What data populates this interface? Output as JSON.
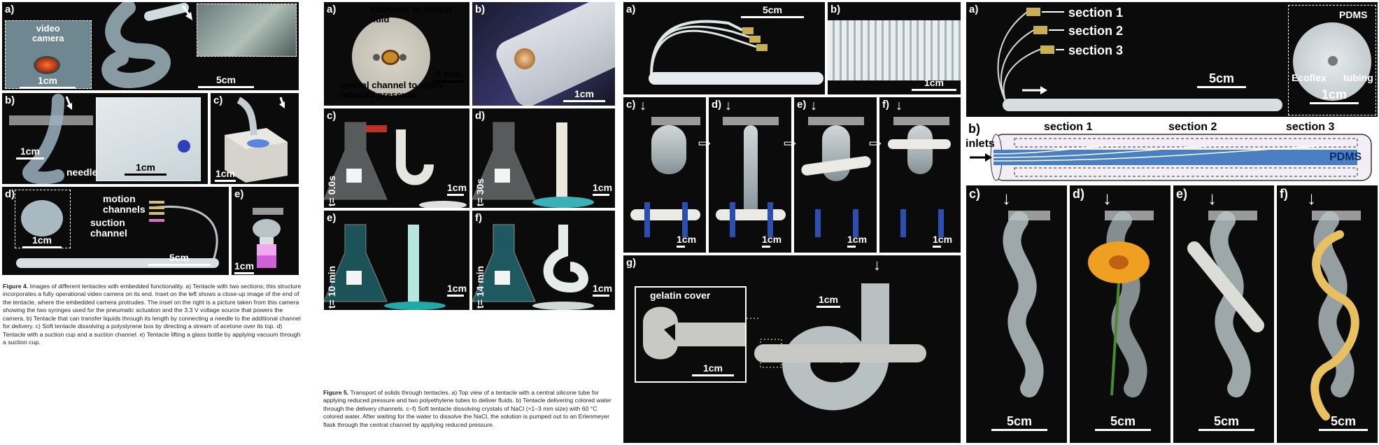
{
  "figure4": {
    "panels": {
      "a": {
        "label": "a)",
        "inset_text": "video\ncamera",
        "scale_inset": "1cm",
        "scale_main": "5cm"
      },
      "b": {
        "label": "b)",
        "scale_main": "1cm",
        "needle": "needle",
        "scale_inset": "1cm"
      },
      "c": {
        "label": "c)",
        "scale": "1cm"
      },
      "d": {
        "label": "d)",
        "motion": "motion\nchannels",
        "suction": "suction\nchannel",
        "scale_inset": "1cm",
        "scale_main": "5cm"
      },
      "e": {
        "label": "e)",
        "scale": "1cm"
      }
    },
    "caption": {
      "title": "Figure 4.",
      "text": " Images of different tentacles with embedded functionality. a) Tentacle with two sections; this structure incorporates a fully operational video camera on its end. Inset on the left shows a close-up image of the end of the tentacle, where the embedded camera protrudes. The inset on the right is a picture taken from this camera showing the two syringes used for the pneumatic actuation and the 3.3 V voltage source that powers the camera. b) Tentacle that can transfer liquids through its length by connecting a needle to the additional channel for delivery. c) Soft tentacle dissolving a polystyrene box by directing a stream of acetone over its top. d) Tentacle with a suction cup and a suction channel. e) Tentacle lifting a glass bottle by applying vacuum through a suction cup."
    }
  },
  "figure5": {
    "panels": {
      "a": {
        "label": "a)",
        "top": "channels to deliver\nfluid",
        "bottom": "central channel to apply\nreduced pressure",
        "scale": "5 mm"
      },
      "b": {
        "label": "b)",
        "scale": "1cm"
      },
      "c": {
        "label": "c)",
        "time": "t= 0.0s",
        "scale": "1cm"
      },
      "d": {
        "label": "d)",
        "time": "t= 30s",
        "scale": "1cm"
      },
      "e": {
        "label": "e)",
        "time": "t= 10 min",
        "scale": "1cm"
      },
      "f": {
        "label": "f)",
        "time": "t= 14 min",
        "scale": "1cm"
      }
    },
    "caption": {
      "title": "Figure 5.",
      "text": " Transport of solids through tentacles. a) Top view of a tentacle with a central silicone tube for applying reduced pressure and two polyethylene tubes to deliver fluids. b) Tentacle delivering colored water through the delivery channels. c–f) Soft tentacle dissolving crystals of NaCl (≈1–3 mm size) with 60 °C colored water. After waiting for the water to dissolve the NaCl, the solution is pumped out to an Erlenmeyer flask through the central channel by applying reduced pressure."
    }
  },
  "figure6": {
    "panels": {
      "a": {
        "label": "a)",
        "scale": "5cm"
      },
      "b": {
        "label": "b)",
        "scale": "1cm"
      },
      "c": {
        "label": "c)",
        "scale": "1cm"
      },
      "d": {
        "label": "d)",
        "scale": "1cm"
      },
      "e": {
        "label": "e)",
        "scale": "1cm"
      },
      "f": {
        "label": "f)",
        "scale": "1cm"
      },
      "g": {
        "label": "g)",
        "inset_text": "gelatin cover",
        "scale_inset": "1cm",
        "scale_main": "1cm"
      }
    }
  },
  "figure7": {
    "panels": {
      "a": {
        "label": "a)",
        "section1": "section 1",
        "section2": "section 2",
        "section3": "section 3",
        "pdms": "PDMS",
        "ecoflex": "Ecoflex",
        "tubing": "tubing",
        "scale_main": "5cm",
        "scale_inset": "1cm"
      },
      "b": {
        "label": "b)",
        "inlets": "inlets",
        "section1": "section 1",
        "section2": "section 2",
        "section3": "section 3",
        "pdms": "PDMS"
      },
      "c": {
        "label": "c)",
        "scale": "5cm"
      },
      "d": {
        "label": "d)",
        "scale": "5cm"
      },
      "e": {
        "label": "e)",
        "scale": "5cm"
      },
      "f": {
        "label": "f)",
        "scale": "5cm"
      }
    }
  },
  "colors": {
    "panel_bg": "#0b0b0b",
    "pdms_blue": "#4a7fc1",
    "acetone_blue": "#2d6fd6",
    "flower_orange": "#f0a020",
    "gold_strip": "#e8c060",
    "pink_liquid": "#e070d0"
  }
}
